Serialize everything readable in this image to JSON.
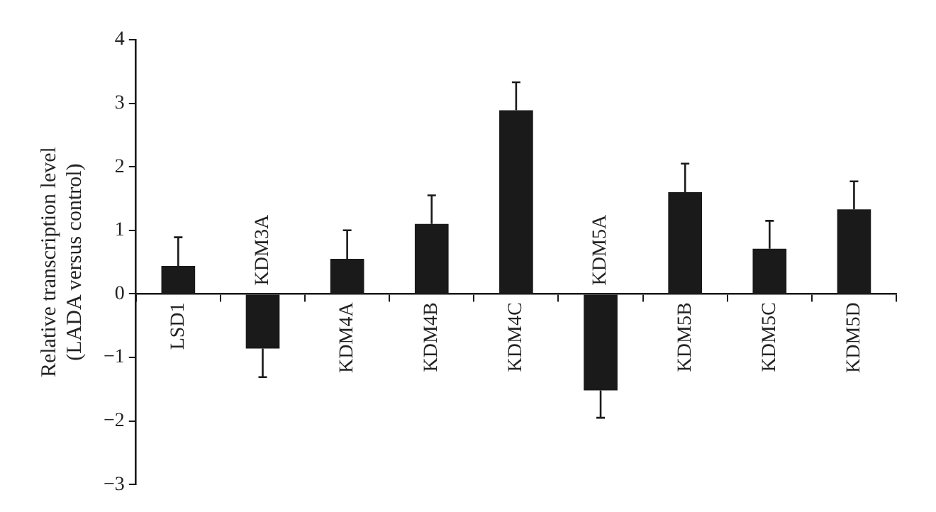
{
  "chart_data": {
    "type": "bar",
    "ylabel": "Relative transcription level\n(LADA versus control)",
    "categories": [
      "LSD1",
      "KDM3A",
      "KDM4A",
      "KDM4B",
      "KDM4C",
      "KDM5A",
      "KDM5B",
      "KDM5C",
      "KDM5D"
    ],
    "values": [
      0.44,
      -0.86,
      0.55,
      1.1,
      2.89,
      -1.52,
      1.6,
      0.71,
      1.33
    ],
    "errors": [
      [
        0.44,
        0.89
      ],
      [
        -1.31,
        -0.86
      ],
      [
        0.55,
        1.0
      ],
      [
        1.1,
        1.55
      ],
      [
        2.89,
        3.33
      ],
      [
        -1.95,
        -1.52
      ],
      [
        1.6,
        2.05
      ],
      [
        0.71,
        1.15
      ],
      [
        1.33,
        1.77
      ]
    ],
    "color": "#1a1a1a",
    "ylim": [
      -3,
      4
    ],
    "yticks": [
      -3,
      -2,
      -1,
      0,
      1,
      2,
      3,
      4
    ],
    "grid": false,
    "legend": false
  }
}
